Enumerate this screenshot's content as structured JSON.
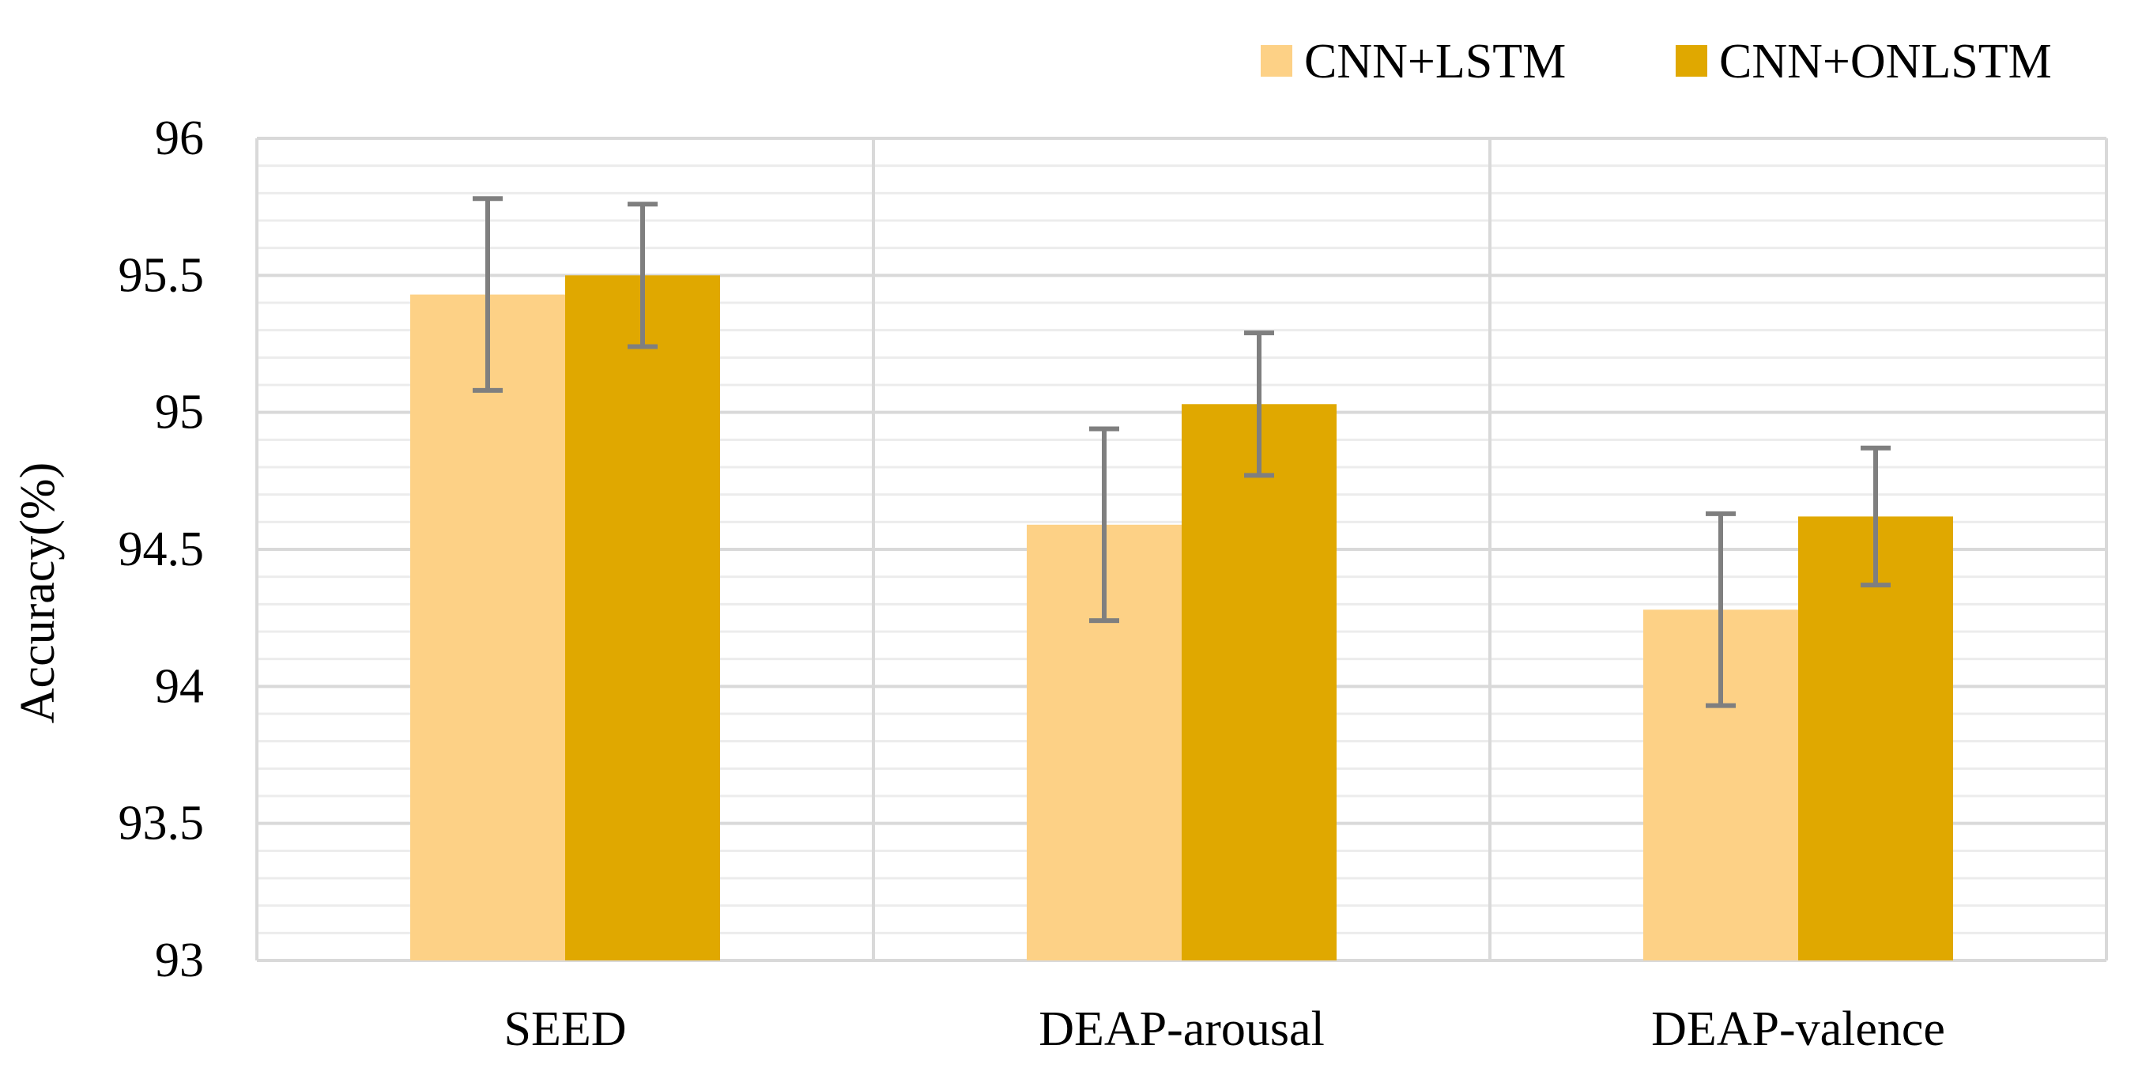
{
  "chart_data": {
    "type": "bar",
    "title": "",
    "xlabel": "",
    "ylabel": "Accuracy(%)",
    "ylim": [
      93,
      96
    ],
    "yticks": [
      "93",
      "93.5",
      "94",
      "94.5",
      "95",
      "95.5",
      "96"
    ],
    "major_step": 0.5,
    "minor_step": 0.1,
    "grid": true,
    "legend_position": "top-right",
    "categories": [
      "SEED",
      "DEAP-arousal",
      "DEAP-valence"
    ],
    "series": [
      {
        "name": "CNN+LSTM",
        "color": "#FDD186",
        "values": [
          95.43,
          94.59,
          94.28
        ],
        "errors": [
          0.35,
          0.35,
          0.35
        ]
      },
      {
        "name": "CNN+ONLSTM",
        "color": "#E0A800",
        "values": [
          95.5,
          95.03,
          94.62
        ],
        "errors": [
          0.26,
          0.26,
          0.25
        ]
      }
    ]
  }
}
